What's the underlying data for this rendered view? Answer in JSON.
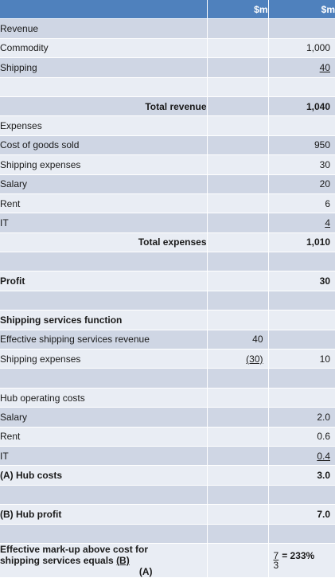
{
  "header": {
    "col_b": "$m",
    "col_c": "$m"
  },
  "rows": [
    {
      "id": "revenue-heading",
      "label": "Revenue",
      "b": "",
      "c": ""
    },
    {
      "id": "commodity",
      "label": "Commodity",
      "b": "",
      "c": "1,000"
    },
    {
      "id": "shipping",
      "label": "Shipping",
      "b": "",
      "c": "40"
    },
    {
      "id": "blank-1",
      "label": "",
      "b": "",
      "c": ""
    },
    {
      "id": "total-revenue",
      "label": "Total revenue",
      "b": "",
      "c": "1,040"
    },
    {
      "id": "expenses-heading",
      "label": "Expenses",
      "b": "",
      "c": ""
    },
    {
      "id": "cost-of-goods-sold",
      "label": "Cost of goods sold",
      "b": "",
      "c": "950"
    },
    {
      "id": "shipping-expenses",
      "label": "Shipping expenses",
      "b": "",
      "c": "30"
    },
    {
      "id": "salary",
      "label": "Salary",
      "b": "",
      "c": "20"
    },
    {
      "id": "rent",
      "label": "Rent",
      "b": "",
      "c": "6"
    },
    {
      "id": "it",
      "label": "IT",
      "b": "",
      "c": "4"
    },
    {
      "id": "total-expenses",
      "label": "Total expenses",
      "b": "",
      "c": "1,010"
    },
    {
      "id": "blank-2",
      "label": "",
      "b": "",
      "c": ""
    },
    {
      "id": "profit",
      "label": "Profit",
      "b": "",
      "c": "30"
    },
    {
      "id": "blank-3",
      "label": "",
      "b": "",
      "c": ""
    },
    {
      "id": "shipping-services-function",
      "label": "Shipping services function",
      "b": "",
      "c": ""
    },
    {
      "id": "effective-shipping-revenue",
      "label": "Effective shipping services revenue",
      "b": "40",
      "c": ""
    },
    {
      "id": "function-shipping-expenses",
      "label": "Shipping expenses",
      "b": "(30)",
      "c": "10"
    },
    {
      "id": "blank-4",
      "label": "",
      "b": "",
      "c": ""
    },
    {
      "id": "hub-operating-costs",
      "label": "Hub operating costs",
      "b": "",
      "c": ""
    },
    {
      "id": "hub-salary",
      "label": "Salary",
      "b": "",
      "c": "2.0"
    },
    {
      "id": "hub-rent",
      "label": "Rent",
      "b": "",
      "c": "0.6"
    },
    {
      "id": "hub-it",
      "label": "IT",
      "b": "",
      "c": "0.4"
    },
    {
      "id": "hub-costs",
      "label": "(A) Hub costs",
      "b": "",
      "c": "3.0"
    },
    {
      "id": "blank-5",
      "label": "",
      "b": "",
      "c": ""
    },
    {
      "id": "hub-profit",
      "label": "(B) Hub profit",
      "b": "",
      "c": "7.0"
    },
    {
      "id": "blank-6",
      "label": "",
      "b": "",
      "c": ""
    }
  ],
  "markup": {
    "line1": "Effective mark-up above cost for",
    "line2_prefix": "shipping services equals ",
    "line2_b": "(B)",
    "line3": "(A)",
    "numerator": "7",
    "denominator": "3",
    "result": "= 233%"
  }
}
